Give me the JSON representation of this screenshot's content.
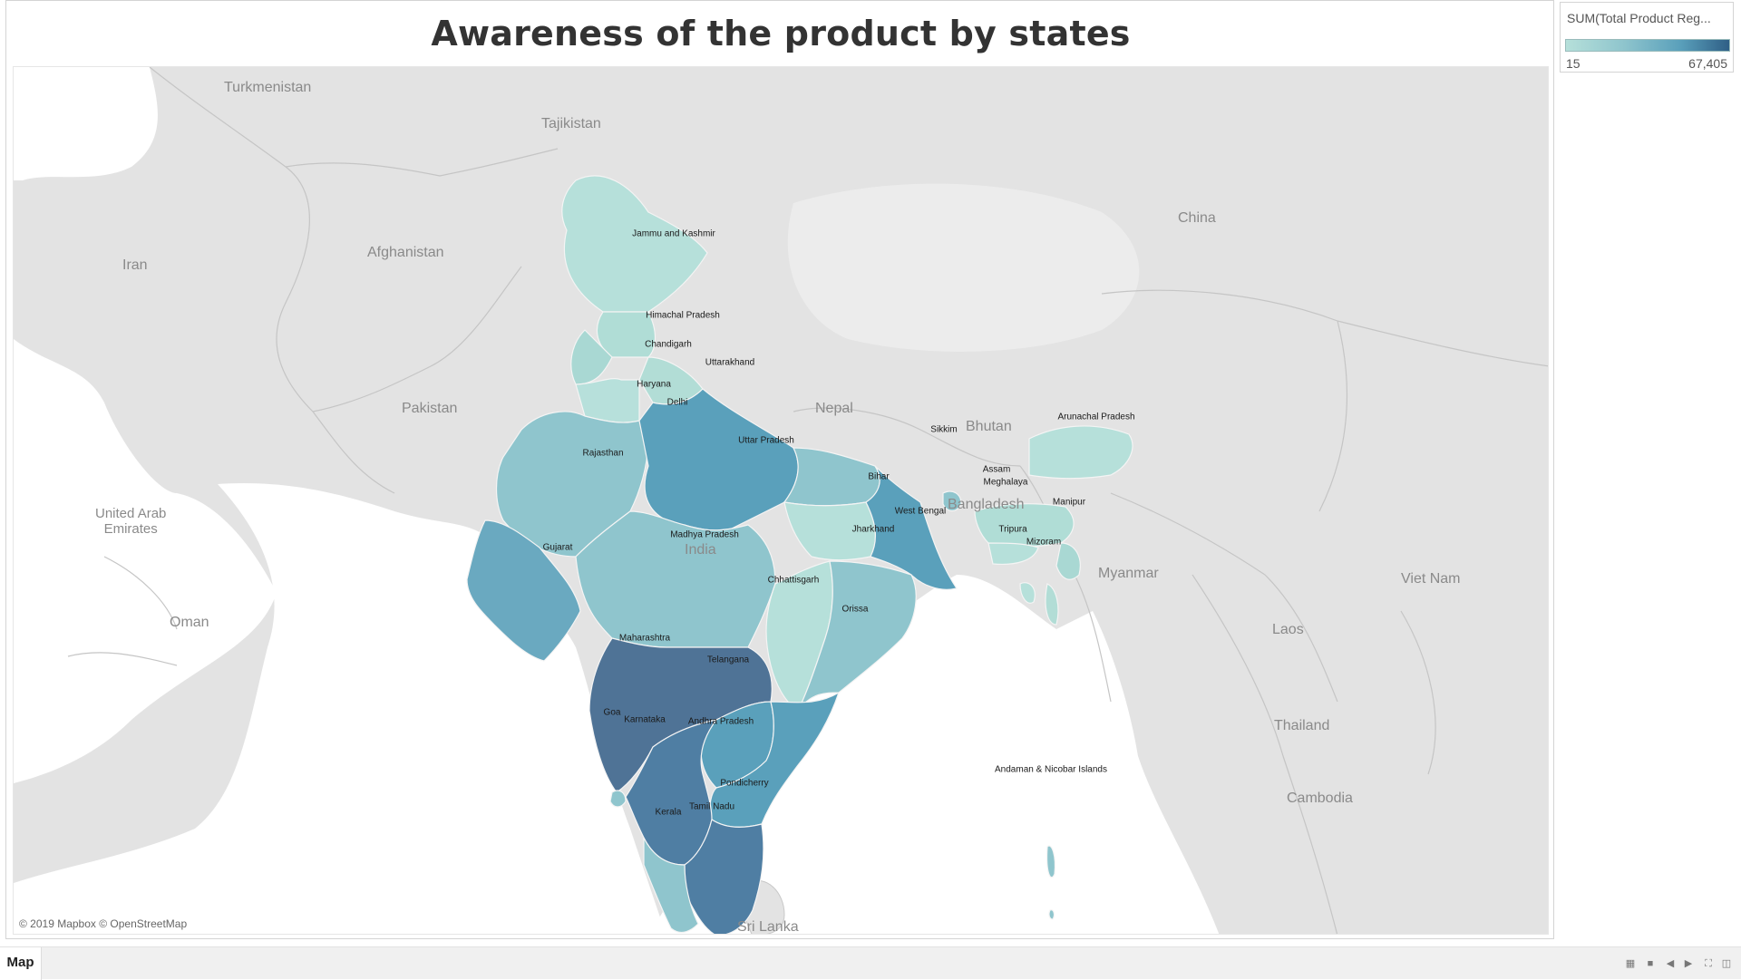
{
  "title": "Awareness of the product by states",
  "legend": {
    "title": "SUM(Total Product Reg...",
    "min_label": "15",
    "max_label": "67,405",
    "colors": [
      "#b6e0da",
      "#8fc5cd",
      "#5aa0bb",
      "#2f5f86"
    ]
  },
  "attribution": "© 2019 Mapbox © OpenStreetMap",
  "countries": {
    "turkmenistan": "Turkmenistan",
    "tajikistan": "Tajikistan",
    "iran": "Iran",
    "afghanistan": "Afghanistan",
    "pakistan": "Pakistan",
    "nepal": "Nepal",
    "bhutan": "Bhutan",
    "china": "China",
    "bangladesh": "Bangladesh",
    "india": "India",
    "myanmar": "Myanmar",
    "viet_nam": "Viet Nam",
    "laos": "Laos",
    "thailand": "Thailand",
    "cambodia": "Cambodia",
    "sri_lanka": "Sri Lanka",
    "uae_line1": "United Arab",
    "uae_line2": "Emirates",
    "oman": "Oman"
  },
  "states": {
    "jammu_kashmir": "Jammu and Kashmir",
    "himachal": "Himachal Pradesh",
    "chandigarh": "Chandigarh",
    "uttarakhand": "Uttarakhand",
    "haryana": "Haryana",
    "delhi": "Delhi",
    "rajasthan": "Rajasthan",
    "uttar_pradesh": "Uttar Pradesh",
    "bihar": "Bihar",
    "sikkim": "Sikkim",
    "arunachal": "Arunachal Pradesh",
    "assam": "Assam",
    "meghalaya": "Meghalaya",
    "manipur": "Manipur",
    "tripura": "Tripura",
    "mizoram": "Mizoram",
    "west_bengal": "West Bengal",
    "jharkhand": "Jharkhand",
    "gujarat": "Gujarat",
    "madhya_pradesh": "Madhya Pradesh",
    "chhattisgarh": "Chhattisgarh",
    "orissa": "Orissa",
    "maharashtra": "Maharashtra",
    "telangana": "Telangana",
    "goa": "Goa",
    "karnataka": "Karnataka",
    "andhra": "Andhra Pradesh",
    "pondicherry": "Pondicherry",
    "tamil_nadu": "Tamil Nadu",
    "kerala": "Kerala",
    "andaman": "Andaman & Nicobar Islands"
  },
  "tabs": {
    "map": "Map"
  }
}
